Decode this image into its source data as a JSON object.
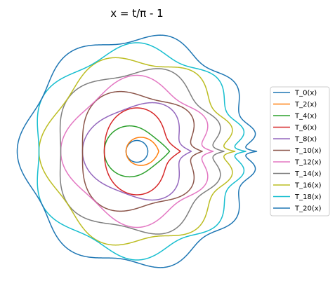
{
  "chart_data": {
    "type": "line",
    "title": "x = t/π - 1",
    "xlabel": "",
    "ylabel": "",
    "axes_visible": false,
    "grid": false,
    "legend_position": "right",
    "parametrization": {
      "x": "t/π - 1",
      "r": "1 + n + T_n(x)",
      "t_range": [
        0,
        6.2832
      ]
    },
    "series": [
      {
        "name": "T_0(x)",
        "n": 0,
        "color": "#1f77b4"
      },
      {
        "name": "T_2(x)",
        "n": 2,
        "color": "#ff7f0e"
      },
      {
        "name": "T_4(x)",
        "n": 4,
        "color": "#2ca02c"
      },
      {
        "name": "T_6(x)",
        "n": 6,
        "color": "#d62728"
      },
      {
        "name": "T_8(x)",
        "n": 8,
        "color": "#9467bd"
      },
      {
        "name": "T_10(x)",
        "n": 10,
        "color": "#8c564b"
      },
      {
        "name": "T_12(x)",
        "n": 12,
        "color": "#e377c2"
      },
      {
        "name": "T_14(x)",
        "n": 14,
        "color": "#7f7f7f"
      },
      {
        "name": "T_16(x)",
        "n": 16,
        "color": "#bcbd22"
      },
      {
        "name": "T_18(x)",
        "n": 18,
        "color": "#17becf"
      },
      {
        "name": "T_20(x)",
        "n": 20,
        "color": "#1f77b4"
      }
    ]
  }
}
